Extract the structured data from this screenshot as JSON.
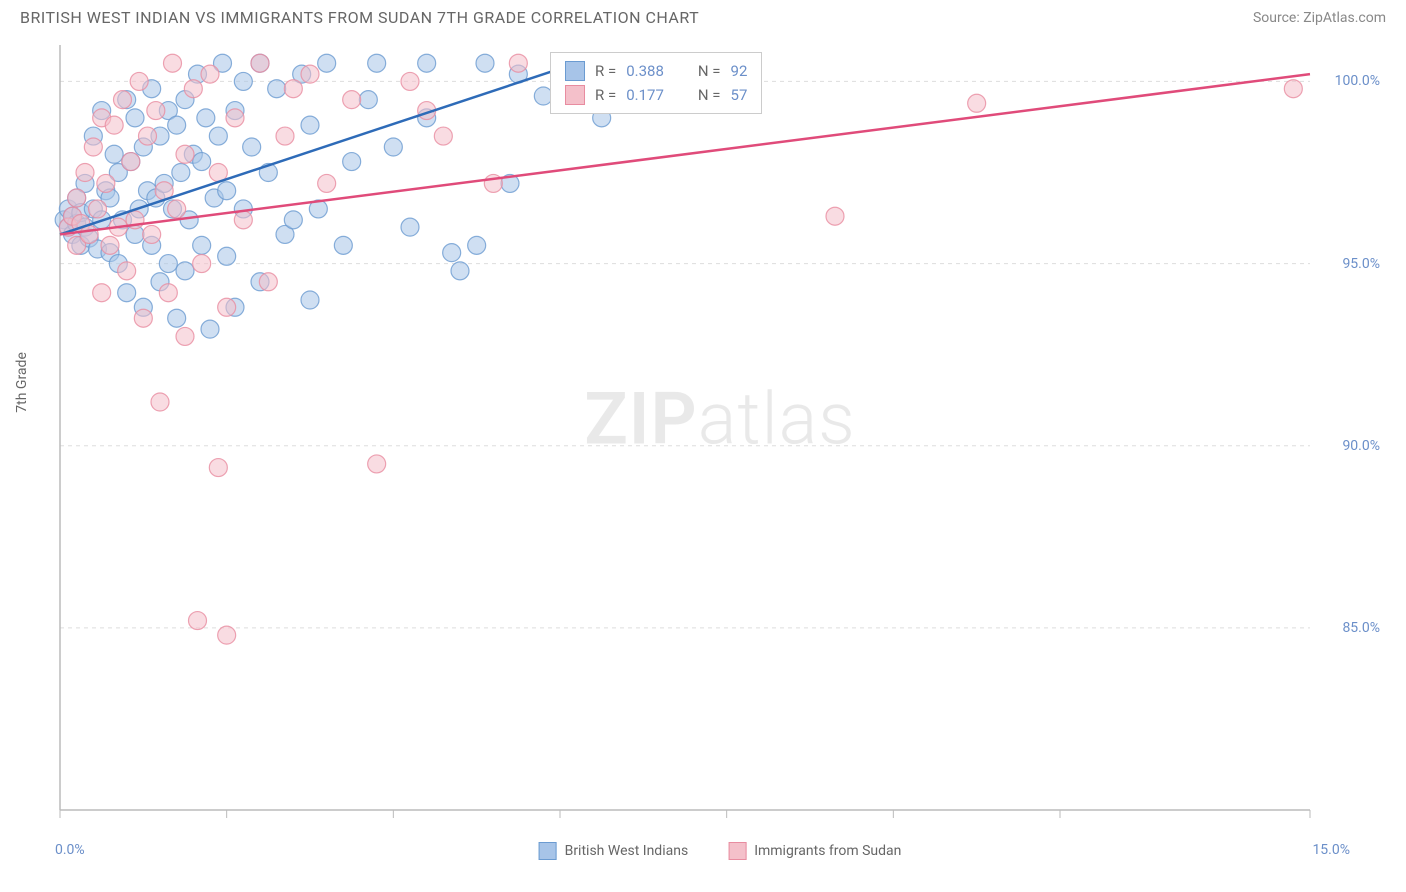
{
  "title": "BRITISH WEST INDIAN VS IMMIGRANTS FROM SUDAN 7TH GRADE CORRELATION CHART",
  "source_label": "Source: ",
  "source_name": "ZipAtlas.com",
  "watermark_a": "ZIP",
  "watermark_b": "atlas",
  "chart": {
    "type": "scatter",
    "y_label": "7th Grade",
    "xlim": [
      0,
      15
    ],
    "ylim": [
      80,
      101
    ],
    "x_ticks": [
      0,
      2,
      4,
      6,
      8,
      10,
      12,
      15
    ],
    "x_tick_labels": {
      "0": "0.0%",
      "15": "15.0%"
    },
    "y_ticks": [
      85,
      90,
      95,
      100
    ],
    "y_tick_labels": {
      "85": "85.0%",
      "90": "90.0%",
      "95": "95.0%",
      "100": "100.0%"
    },
    "grid_color": "#dddddd",
    "axis_color": "#bbbbbb",
    "background": "#ffffff",
    "marker_radius": 9,
    "marker_opacity": 0.55,
    "line_width": 2.5,
    "series": [
      {
        "id": "bwi",
        "name": "British West Indians",
        "color_fill": "#a7c4e8",
        "color_stroke": "#6b9bd1",
        "line_color": "#2e6bb8",
        "R": "0.388",
        "N": "92",
        "trend": {
          "x1": 0,
          "y1": 95.8,
          "x2": 6.2,
          "y2": 100.5
        },
        "points": [
          [
            0.05,
            96.2
          ],
          [
            0.1,
            96.0
          ],
          [
            0.1,
            96.5
          ],
          [
            0.15,
            95.8
          ],
          [
            0.15,
            96.3
          ],
          [
            0.2,
            96.1
          ],
          [
            0.2,
            96.8
          ],
          [
            0.25,
            95.5
          ],
          [
            0.25,
            96.4
          ],
          [
            0.3,
            96.0
          ],
          [
            0.3,
            97.2
          ],
          [
            0.35,
            95.7
          ],
          [
            0.4,
            96.5
          ],
          [
            0.4,
            98.5
          ],
          [
            0.45,
            95.4
          ],
          [
            0.5,
            96.2
          ],
          [
            0.5,
            99.2
          ],
          [
            0.55,
            97.0
          ],
          [
            0.6,
            95.3
          ],
          [
            0.6,
            96.8
          ],
          [
            0.65,
            98.0
          ],
          [
            0.7,
            95.0
          ],
          [
            0.7,
            97.5
          ],
          [
            0.75,
            96.2
          ],
          [
            0.8,
            99.5
          ],
          [
            0.8,
            94.2
          ],
          [
            0.85,
            97.8
          ],
          [
            0.9,
            95.8
          ],
          [
            0.9,
            99.0
          ],
          [
            0.95,
            96.5
          ],
          [
            1.0,
            98.2
          ],
          [
            1.0,
            93.8
          ],
          [
            1.05,
            97.0
          ],
          [
            1.1,
            99.8
          ],
          [
            1.1,
            95.5
          ],
          [
            1.15,
            96.8
          ],
          [
            1.2,
            98.5
          ],
          [
            1.2,
            94.5
          ],
          [
            1.25,
            97.2
          ],
          [
            1.3,
            99.2
          ],
          [
            1.3,
            95.0
          ],
          [
            1.35,
            96.5
          ],
          [
            1.4,
            98.8
          ],
          [
            1.4,
            93.5
          ],
          [
            1.45,
            97.5
          ],
          [
            1.5,
            99.5
          ],
          [
            1.5,
            94.8
          ],
          [
            1.55,
            96.2
          ],
          [
            1.6,
            98.0
          ],
          [
            1.65,
            100.2
          ],
          [
            1.7,
            95.5
          ],
          [
            1.7,
            97.8
          ],
          [
            1.75,
            99.0
          ],
          [
            1.8,
            93.2
          ],
          [
            1.85,
            96.8
          ],
          [
            1.9,
            98.5
          ],
          [
            1.95,
            100.5
          ],
          [
            2.0,
            95.2
          ],
          [
            2.0,
            97.0
          ],
          [
            2.1,
            99.2
          ],
          [
            2.1,
            93.8
          ],
          [
            2.2,
            96.5
          ],
          [
            2.2,
            100.0
          ],
          [
            2.3,
            98.2
          ],
          [
            2.4,
            94.5
          ],
          [
            2.4,
            100.5
          ],
          [
            2.5,
            97.5
          ],
          [
            2.6,
            99.8
          ],
          [
            2.7,
            95.8
          ],
          [
            2.8,
            96.2
          ],
          [
            2.9,
            100.2
          ],
          [
            3.0,
            94.0
          ],
          [
            3.0,
            98.8
          ],
          [
            3.1,
            96.5
          ],
          [
            3.2,
            100.5
          ],
          [
            3.4,
            95.5
          ],
          [
            3.5,
            97.8
          ],
          [
            3.7,
            99.5
          ],
          [
            3.8,
            100.5
          ],
          [
            4.0,
            98.2
          ],
          [
            4.2,
            96.0
          ],
          [
            4.4,
            99.0
          ],
          [
            4.4,
            100.5
          ],
          [
            4.7,
            95.3
          ],
          [
            4.8,
            94.8
          ],
          [
            5.0,
            95.5
          ],
          [
            5.1,
            100.5
          ],
          [
            5.4,
            97.2
          ],
          [
            5.5,
            100.2
          ],
          [
            5.8,
            99.6
          ],
          [
            6.0,
            100.5
          ],
          [
            6.5,
            99.0
          ]
        ]
      },
      {
        "id": "sudan",
        "name": "Immigrants from Sudan",
        "color_fill": "#f4c0ca",
        "color_stroke": "#e88ca0",
        "line_color": "#e04b7a",
        "R": "0.177",
        "N": "57",
        "trend": {
          "x1": 0,
          "y1": 95.8,
          "x2": 15,
          "y2": 100.2
        },
        "points": [
          [
            0.1,
            96.0
          ],
          [
            0.15,
            96.3
          ],
          [
            0.2,
            96.8
          ],
          [
            0.2,
            95.5
          ],
          [
            0.25,
            96.1
          ],
          [
            0.3,
            97.5
          ],
          [
            0.35,
            95.8
          ],
          [
            0.4,
            98.2
          ],
          [
            0.45,
            96.5
          ],
          [
            0.5,
            99.0
          ],
          [
            0.5,
            94.2
          ],
          [
            0.55,
            97.2
          ],
          [
            0.6,
            95.5
          ],
          [
            0.65,
            98.8
          ],
          [
            0.7,
            96.0
          ],
          [
            0.75,
            99.5
          ],
          [
            0.8,
            94.8
          ],
          [
            0.85,
            97.8
          ],
          [
            0.9,
            96.2
          ],
          [
            0.95,
            100.0
          ],
          [
            1.0,
            93.5
          ],
          [
            1.05,
            98.5
          ],
          [
            1.1,
            95.8
          ],
          [
            1.15,
            99.2
          ],
          [
            1.2,
            91.2
          ],
          [
            1.25,
            97.0
          ],
          [
            1.3,
            94.2
          ],
          [
            1.35,
            100.5
          ],
          [
            1.4,
            96.5
          ],
          [
            1.5,
            98.0
          ],
          [
            1.5,
            93.0
          ],
          [
            1.6,
            99.8
          ],
          [
            1.65,
            85.2
          ],
          [
            1.7,
            95.0
          ],
          [
            1.8,
            100.2
          ],
          [
            1.9,
            89.4
          ],
          [
            1.9,
            97.5
          ],
          [
            2.0,
            93.8
          ],
          [
            2.0,
            84.8
          ],
          [
            2.1,
            99.0
          ],
          [
            2.2,
            96.2
          ],
          [
            2.4,
            100.5
          ],
          [
            2.5,
            94.5
          ],
          [
            2.7,
            98.5
          ],
          [
            2.8,
            99.8
          ],
          [
            3.0,
            100.2
          ],
          [
            3.2,
            97.2
          ],
          [
            3.5,
            99.5
          ],
          [
            3.8,
            89.5
          ],
          [
            4.2,
            100.0
          ],
          [
            4.4,
            99.2
          ],
          [
            4.6,
            98.5
          ],
          [
            5.2,
            97.2
          ],
          [
            5.5,
            100.5
          ],
          [
            9.3,
            96.3
          ],
          [
            11.0,
            99.4
          ],
          [
            14.8,
            99.8
          ]
        ]
      }
    ],
    "stats_box": {
      "r_label": "R =",
      "n_label": "N ="
    },
    "bottom_legend": true
  }
}
